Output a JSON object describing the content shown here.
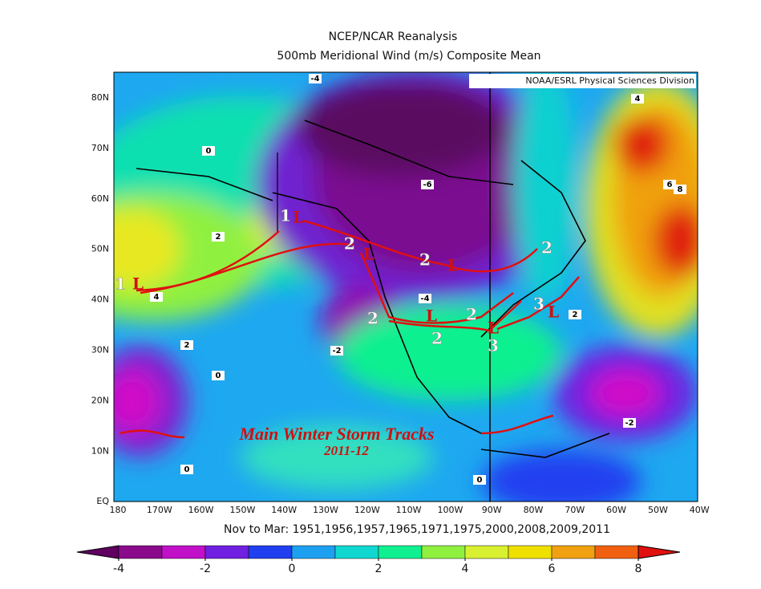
{
  "title": "NCEP/NCAR Reanalysis",
  "subtitle": "500mb Meridional Wind (m/s) Composite Mean",
  "credit": "NOAA/ESRL Physical Sciences Division",
  "lat_labels": [
    "80N",
    "70N",
    "60N",
    "50N",
    "40N",
    "30N",
    "20N",
    "10N",
    "EQ"
  ],
  "lon_labels": [
    "180",
    "170W",
    "160W",
    "150W",
    "140W",
    "130W",
    "120W",
    "110W",
    "100W",
    "90W",
    "80W",
    "70W",
    "60W",
    "50W",
    "40W"
  ],
  "footer": "Nov to Mar: 1951,1956,1957,1965,1971,1975,2000,2008,2009,2011",
  "contour_labels": [
    -4,
    0,
    -6,
    2,
    4,
    2,
    0,
    -2,
    -4,
    0,
    0,
    -2,
    6,
    8,
    2,
    4
  ],
  "track_labels": [
    "1",
    "L",
    "1",
    "L",
    "2",
    "L",
    "2",
    "L",
    "2",
    "2",
    "L",
    "2",
    "2",
    "L",
    "3",
    "3",
    "L"
  ],
  "annotation": {
    "title": "Main Winter Storm Tracks",
    "years": "2011-12"
  },
  "colorbar": {
    "lim": [
      -4,
      8
    ],
    "ticks": [
      -4,
      -2,
      0,
      2,
      4,
      6,
      8
    ],
    "bin_colors": [
      "#8a0a8a",
      "#c010c8",
      "#7020e0",
      "#2040f0",
      "#1ea0f0",
      "#10d8d0",
      "#10f090",
      "#90f040",
      "#d8f030",
      "#f0e000",
      "#f0a010",
      "#f06010"
    ],
    "under_color": "#600060",
    "over_color": "#e01010"
  }
}
